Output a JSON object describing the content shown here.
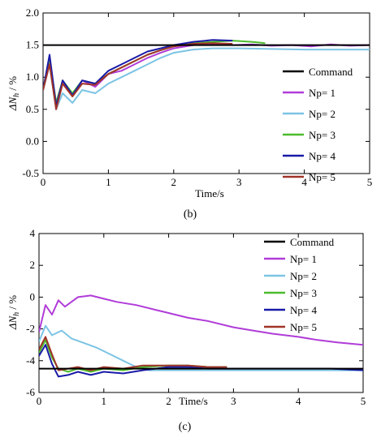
{
  "colors": {
    "command": "#000000",
    "np1": "#b03cd8",
    "np2": "#7cc4e4",
    "np3": "#4cbb2c",
    "np4": "#1a1aa8",
    "np5": "#a03428"
  },
  "chart_data": [
    {
      "type": "line",
      "caption": "(b)",
      "xlabel": "Time/s",
      "ylabel_main": "ΔN",
      "ylabel_sub": "h",
      "ylabel_tail": " / %",
      "xlim": [
        0,
        5
      ],
      "ylim": [
        -0.5,
        2.0
      ],
      "xticks": [
        "0",
        "1",
        "2",
        "3",
        "4",
        "5"
      ],
      "yticks": [
        "-0.5",
        "0.0",
        "0.5",
        "1.0",
        "1.5",
        "2.0"
      ],
      "legend_position": "bottom-right",
      "series": [
        {
          "name": "Command",
          "key": "command",
          "points": [
            [
              0,
              1.5
            ],
            [
              5,
              1.5
            ]
          ]
        },
        {
          "name": "Np= 1",
          "key": "np1",
          "points": [
            [
              0,
              0.8
            ],
            [
              0.1,
              1.25
            ],
            [
              0.2,
              0.6
            ],
            [
              0.3,
              0.9
            ],
            [
              0.45,
              0.72
            ],
            [
              0.6,
              0.95
            ],
            [
              0.8,
              0.85
            ],
            [
              1.0,
              1.05
            ],
            [
              1.2,
              1.1
            ],
            [
              1.4,
              1.2
            ],
            [
              1.6,
              1.3
            ],
            [
              1.8,
              1.38
            ],
            [
              2.0,
              1.45
            ],
            [
              2.3,
              1.5
            ],
            [
              2.6,
              1.52
            ],
            [
              2.9,
              1.5
            ],
            [
              3.2,
              1.51
            ],
            [
              3.5,
              1.49
            ],
            [
              3.8,
              1.5
            ],
            [
              4.1,
              1.48
            ],
            [
              4.4,
              1.51
            ],
            [
              4.7,
              1.49
            ],
            [
              5.0,
              1.5
            ]
          ]
        },
        {
          "name": "Np= 2",
          "key": "np2",
          "points": [
            [
              0,
              0.8
            ],
            [
              0.1,
              1.2
            ],
            [
              0.2,
              0.5
            ],
            [
              0.3,
              0.75
            ],
            [
              0.45,
              0.6
            ],
            [
              0.6,
              0.8
            ],
            [
              0.8,
              0.75
            ],
            [
              1.0,
              0.9
            ],
            [
              1.2,
              1.0
            ],
            [
              1.4,
              1.1
            ],
            [
              1.6,
              1.2
            ],
            [
              1.8,
              1.3
            ],
            [
              2.0,
              1.38
            ],
            [
              2.3,
              1.43
            ],
            [
              2.6,
              1.45
            ],
            [
              3.0,
              1.45
            ],
            [
              3.5,
              1.44
            ],
            [
              4.0,
              1.43
            ],
            [
              4.5,
              1.43
            ],
            [
              5.0,
              1.43
            ]
          ]
        },
        {
          "name": "Np= 3",
          "key": "np3",
          "points": [
            [
              0,
              0.8
            ],
            [
              0.1,
              1.3
            ],
            [
              0.2,
              0.6
            ],
            [
              0.3,
              0.95
            ],
            [
              0.45,
              0.75
            ],
            [
              0.6,
              0.95
            ],
            [
              0.8,
              0.9
            ],
            [
              1.0,
              1.05
            ],
            [
              1.2,
              1.15
            ],
            [
              1.4,
              1.25
            ],
            [
              1.6,
              1.35
            ],
            [
              1.8,
              1.42
            ],
            [
              2.0,
              1.48
            ],
            [
              2.3,
              1.53
            ],
            [
              2.6,
              1.55
            ],
            [
              2.9,
              1.57
            ],
            [
              3.2,
              1.55
            ],
            [
              3.4,
              1.53
            ]
          ]
        },
        {
          "name": "Np= 4",
          "key": "np4",
          "points": [
            [
              0,
              0.8
            ],
            [
              0.1,
              1.35
            ],
            [
              0.2,
              0.55
            ],
            [
              0.3,
              0.95
            ],
            [
              0.45,
              0.72
            ],
            [
              0.6,
              0.95
            ],
            [
              0.8,
              0.9
            ],
            [
              1.0,
              1.1
            ],
            [
              1.2,
              1.2
            ],
            [
              1.4,
              1.3
            ],
            [
              1.6,
              1.4
            ],
            [
              1.8,
              1.45
            ],
            [
              2.0,
              1.5
            ],
            [
              2.3,
              1.55
            ],
            [
              2.6,
              1.58
            ],
            [
              2.9,
              1.57
            ]
          ]
        },
        {
          "name": "Np= 5",
          "key": "np5",
          "points": [
            [
              0,
              0.8
            ],
            [
              0.1,
              1.2
            ],
            [
              0.2,
              0.5
            ],
            [
              0.3,
              0.9
            ],
            [
              0.45,
              0.7
            ],
            [
              0.6,
              0.9
            ],
            [
              0.8,
              0.88
            ],
            [
              1.0,
              1.05
            ],
            [
              1.2,
              1.15
            ],
            [
              1.4,
              1.25
            ],
            [
              1.6,
              1.35
            ],
            [
              1.8,
              1.42
            ],
            [
              2.0,
              1.48
            ],
            [
              2.3,
              1.52
            ],
            [
              2.6,
              1.53
            ],
            [
              2.9,
              1.52
            ]
          ]
        }
      ]
    },
    {
      "type": "line",
      "caption": "(c)",
      "xlabel": "Time/s",
      "ylabel_main": "ΔN",
      "ylabel_sub": "h",
      "ylabel_tail": " / %",
      "xlim": [
        0,
        5
      ],
      "ylim": [
        -6,
        4
      ],
      "xticks": [
        "0",
        "1",
        "2",
        "3",
        "4",
        "5"
      ],
      "yticks": [
        "-6",
        "-4",
        "-2",
        "0",
        "2",
        "4"
      ],
      "legend_position": "top-right",
      "series": [
        {
          "name": "Command",
          "key": "command",
          "points": [
            [
              0,
              -4.5
            ],
            [
              5,
              -4.5
            ]
          ]
        },
        {
          "name": "Np= 1",
          "key": "np1",
          "points": [
            [
              0,
              -2.2
            ],
            [
              0.1,
              -0.5
            ],
            [
              0.2,
              -1.1
            ],
            [
              0.3,
              -0.2
            ],
            [
              0.4,
              -0.6
            ],
            [
              0.6,
              0.0
            ],
            [
              0.8,
              0.1
            ],
            [
              1.0,
              -0.1
            ],
            [
              1.2,
              -0.3
            ],
            [
              1.5,
              -0.5
            ],
            [
              1.8,
              -0.8
            ],
            [
              2.0,
              -1.0
            ],
            [
              2.3,
              -1.3
            ],
            [
              2.6,
              -1.5
            ],
            [
              3.0,
              -1.9
            ],
            [
              3.3,
              -2.1
            ],
            [
              3.6,
              -2.3
            ],
            [
              4.0,
              -2.5
            ],
            [
              4.3,
              -2.7
            ],
            [
              4.6,
              -2.85
            ],
            [
              5.0,
              -3.0
            ]
          ]
        },
        {
          "name": "Np= 2",
          "key": "np2",
          "points": [
            [
              0,
              -2.8
            ],
            [
              0.1,
              -1.8
            ],
            [
              0.2,
              -2.4
            ],
            [
              0.35,
              -2.1
            ],
            [
              0.5,
              -2.6
            ],
            [
              0.7,
              -2.9
            ],
            [
              0.9,
              -3.2
            ],
            [
              1.1,
              -3.6
            ],
            [
              1.3,
              -4.0
            ],
            [
              1.5,
              -4.4
            ],
            [
              1.7,
              -4.6
            ],
            [
              2.0,
              -4.6
            ],
            [
              2.5,
              -4.6
            ],
            [
              3.0,
              -4.6
            ],
            [
              3.5,
              -4.6
            ],
            [
              4.0,
              -4.6
            ],
            [
              4.5,
              -4.6
            ],
            [
              5.0,
              -4.6
            ]
          ]
        },
        {
          "name": "Np= 3",
          "key": "np3",
          "points": [
            [
              0,
              -3.5
            ],
            [
              0.1,
              -2.7
            ],
            [
              0.2,
              -3.8
            ],
            [
              0.3,
              -4.5
            ],
            [
              0.45,
              -4.7
            ],
            [
              0.6,
              -4.5
            ],
            [
              0.8,
              -4.7
            ],
            [
              1.0,
              -4.5
            ],
            [
              1.3,
              -4.6
            ],
            [
              1.6,
              -4.4
            ],
            [
              2.0,
              -4.3
            ],
            [
              2.3,
              -4.3
            ],
            [
              2.6,
              -4.4
            ],
            [
              2.9,
              -4.4
            ]
          ]
        },
        {
          "name": "Np= 4",
          "key": "np4",
          "points": [
            [
              0,
              -3.7
            ],
            [
              0.1,
              -3.0
            ],
            [
              0.2,
              -4.2
            ],
            [
              0.3,
              -5.0
            ],
            [
              0.45,
              -4.9
            ],
            [
              0.6,
              -4.7
            ],
            [
              0.8,
              -4.9
            ],
            [
              1.0,
              -4.7
            ],
            [
              1.3,
              -4.8
            ],
            [
              1.6,
              -4.6
            ],
            [
              2.0,
              -4.4
            ],
            [
              2.3,
              -4.4
            ],
            [
              2.6,
              -4.5
            ],
            [
              2.9,
              -4.5
            ],
            [
              3.5,
              -4.5
            ],
            [
              4.0,
              -4.5
            ],
            [
              4.5,
              -4.5
            ],
            [
              5.0,
              -4.6
            ]
          ]
        },
        {
          "name": "Np= 5",
          "key": "np5",
          "points": [
            [
              0,
              -3.3
            ],
            [
              0.1,
              -2.5
            ],
            [
              0.2,
              -3.6
            ],
            [
              0.3,
              -4.6
            ],
            [
              0.45,
              -4.5
            ],
            [
              0.6,
              -4.4
            ],
            [
              0.8,
              -4.6
            ],
            [
              1.0,
              -4.4
            ],
            [
              1.3,
              -4.5
            ],
            [
              1.6,
              -4.3
            ],
            [
              2.0,
              -4.3
            ],
            [
              2.3,
              -4.3
            ],
            [
              2.6,
              -4.4
            ],
            [
              2.9,
              -4.4
            ]
          ]
        }
      ]
    }
  ]
}
